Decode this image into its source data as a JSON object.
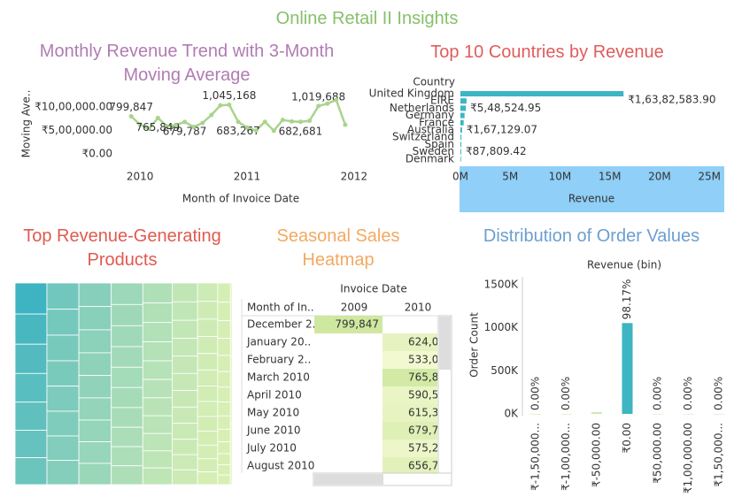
{
  "title": "Online Retail II Insights",
  "chart_data": [
    {
      "type": "line",
      "title": "Monthly Revenue Trend with 3-Month Moving Average",
      "title_color": "#b07cb3",
      "x_label": "Month of Invoice Date",
      "y_label": "Moving Ave..",
      "x": [
        2009.917,
        2010.0,
        2010.083,
        2010.167,
        2010.25,
        2010.333,
        2010.417,
        2010.5,
        2010.583,
        2010.667,
        2010.75,
        2010.833,
        2010.917,
        2011.0,
        2011.083,
        2011.167,
        2011.25,
        2011.333,
        2011.417,
        2011.5,
        2011.583,
        2011.667,
        2011.75,
        2011.833,
        2011.917
      ],
      "values": [
        799847,
        624032,
        533091,
        765849,
        590580,
        615322,
        679787,
        575236,
        656776,
        829000,
        1033000,
        1045168,
        683267,
        560000,
        498000,
        683000,
        493000,
        723000,
        691000,
        682681,
        704000,
        1019688,
        1070000,
        1150000,
        620000
      ],
      "value_labels": [
        "799,847",
        null,
        null,
        "765,849",
        null,
        null,
        "679,787",
        null,
        null,
        null,
        null,
        "1,045,168",
        "683,267",
        null,
        null,
        null,
        null,
        null,
        null,
        "682,681",
        null,
        "1,019,688",
        null,
        null,
        null
      ],
      "color": "#a9d48c",
      "xlim": [
        2009.8,
        2012.1
      ],
      "xticks": [
        2010,
        2011,
        2012
      ],
      "ylim": [
        0,
        1300000
      ],
      "yticks": [
        {
          "value": 0,
          "label": "₹0.00"
        },
        {
          "value": 500000,
          "label": "₹5,00,000.00"
        },
        {
          "value": 1000000,
          "label": "₹10,00,000.00"
        }
      ]
    },
    {
      "type": "barh",
      "title": "Top 10 Countries by Revenue",
      "title_color": "#e05c5c",
      "x_label": "Revenue",
      "y_label": "Country",
      "categories": [
        "United Kingdom",
        "EIRE",
        "Netherlands",
        "Germany",
        "France",
        "Australia",
        "Switzerland",
        "Spain",
        "Sweden",
        "Denmark"
      ],
      "values": [
        16382583.9,
        615520,
        548524.95,
        417988,
        328192,
        167129.07,
        100365,
        91859,
        87809.42,
        65741
      ],
      "value_labels": [
        "₹1,63,82,583.90",
        null,
        "₹5,48,524.95",
        null,
        null,
        "₹1,67,129.07",
        null,
        null,
        "₹87,809.42",
        null
      ],
      "color": "#3db5c2",
      "xlim": [
        0,
        26500000
      ],
      "xticks": [
        {
          "value": 0,
          "label": "0M"
        },
        {
          "value": 5000000,
          "label": "5M"
        },
        {
          "value": 10000000,
          "label": "10M"
        },
        {
          "value": 15000000,
          "label": "15M"
        },
        {
          "value": 20000000,
          "label": "20M"
        },
        {
          "value": 25000000,
          "label": "25M"
        }
      ]
    },
    {
      "type": "treemap",
      "title": "Top Revenue-Generating Products",
      "title_color": "#e05a4f",
      "values": [
        105000,
        102000,
        99000,
        97000,
        95000,
        93000,
        91000,
        89000,
        88000,
        87000,
        86000,
        85000,
        84000,
        83000,
        82000,
        81000,
        80000,
        79000,
        78000,
        77000,
        76000,
        75000,
        74000,
        73000,
        72000,
        71000,
        70000,
        69000,
        68000,
        67000,
        66000,
        65000,
        64000,
        63000,
        62000,
        61000,
        60000,
        59000,
        58000,
        57000,
        56000,
        55000,
        54000,
        53000,
        52000,
        51000,
        50000,
        49000,
        48000,
        47000,
        46000,
        45000,
        44000,
        43000,
        42000,
        41000,
        40000,
        39000,
        38000,
        37000,
        36000,
        35000,
        34000,
        33000,
        32000,
        31000,
        30000,
        29000,
        28000,
        27000,
        26000,
        25000,
        24000,
        23000,
        22000,
        21000,
        20000,
        19000,
        18000,
        17000,
        16000,
        15000,
        14000,
        13000,
        12000,
        11000,
        10000
      ]
    },
    {
      "type": "heatmap",
      "title": "Seasonal Sales Heatmap",
      "title_color": "#f4a862",
      "column_header": "Invoice Date",
      "row_header": "Month of In..",
      "columns": [
        "2009",
        "2010"
      ],
      "rows": [
        "December 2..",
        "January 20..",
        "February 2..",
        "March 2010",
        "April 2010",
        "May 2010",
        "June 2010",
        "July 2010",
        "August 2010"
      ],
      "values": [
        [
          799847,
          null
        ],
        [
          null,
          624032
        ],
        [
          null,
          533091
        ],
        [
          null,
          765849
        ],
        [
          null,
          590580
        ],
        [
          null,
          615322
        ],
        [
          null,
          679787
        ],
        [
          null,
          575236
        ],
        [
          null,
          656776
        ]
      ],
      "value_labels": [
        [
          "799,847",
          null
        ],
        [
          null,
          "624,032"
        ],
        [
          null,
          "533,091"
        ],
        [
          null,
          "765,849"
        ],
        [
          null,
          "590,580"
        ],
        [
          null,
          "615,322"
        ],
        [
          null,
          "679,787"
        ],
        [
          null,
          "575,236"
        ],
        [
          null,
          "656,776"
        ]
      ]
    },
    {
      "type": "bar",
      "title": "Distribution of Order Values",
      "title_color": "#6b9fcf",
      "subtitle": "Revenue (bin)",
      "y_label": "Order Count",
      "categories": [
        "₹-1,50,000...",
        "₹-1,00,000...",
        "₹-50,000.00",
        "₹0.00",
        "₹50,000.00",
        "₹1,00,000.00",
        "₹1,50,000..."
      ],
      "values": [
        1,
        2,
        19600,
        1055000,
        40,
        3,
        1
      ],
      "value_labels": [
        "0.00%",
        "0.00%",
        null,
        "98.17%",
        "0.00%",
        "0.00%",
        "0.00%"
      ],
      "color": "#3db5c2",
      "ylim": [
        0,
        1550000
      ],
      "yticks": [
        {
          "value": 0,
          "label": "0K"
        },
        {
          "value": 500000,
          "label": "500K"
        },
        {
          "value": 1000000,
          "label": "1000K"
        },
        {
          "value": 1500000,
          "label": "1500K"
        }
      ]
    }
  ]
}
